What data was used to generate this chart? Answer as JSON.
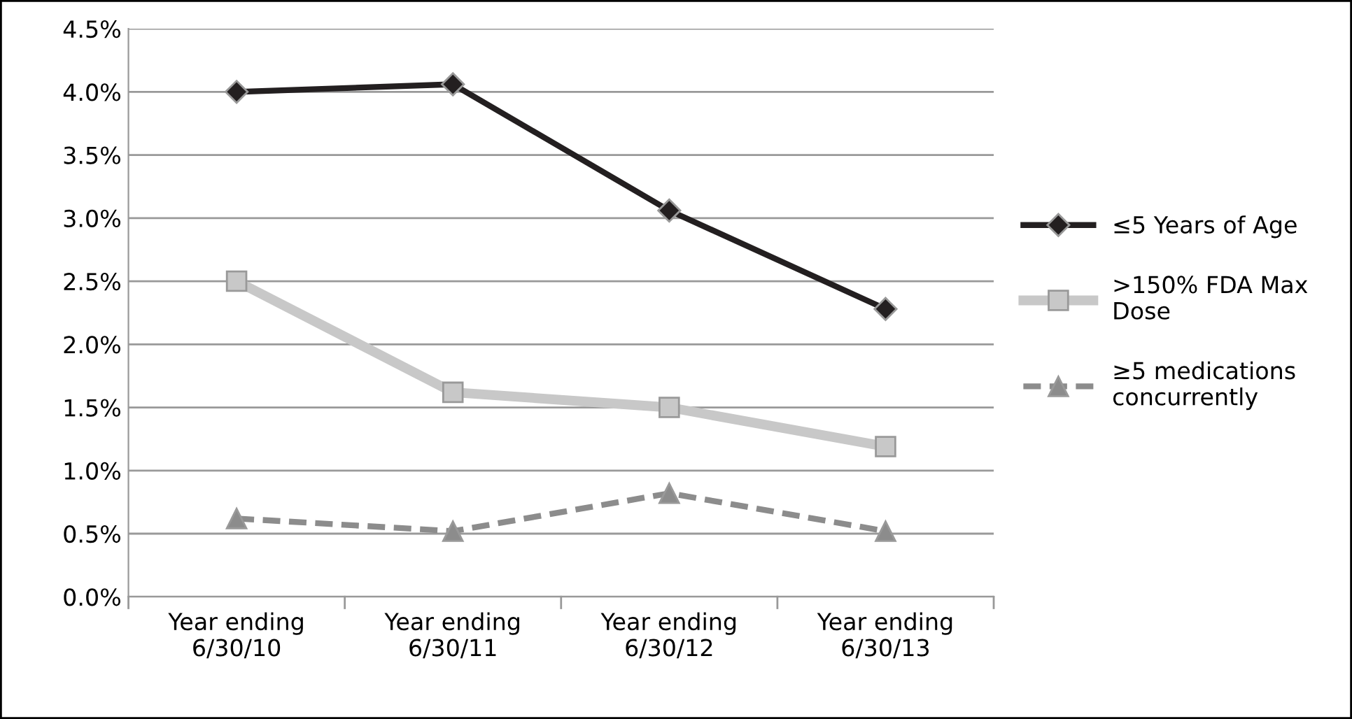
{
  "chart_data": {
    "type": "line",
    "categories": [
      "Year ending\n6/30/10",
      "Year ending\n6/30/11",
      "Year ending\n6/30/12",
      "Year ending\n6/30/13"
    ],
    "series": [
      {
        "name": "≤5 Years of Age",
        "color": "#231f20",
        "values": [
          4.0,
          4.06,
          3.06,
          2.28
        ],
        "marker": "diamond",
        "line_style": "solid"
      },
      {
        "name": ">150% FDA Max Dose",
        "color": "#c8c8c8",
        "values": [
          2.5,
          1.62,
          1.5,
          1.19
        ],
        "marker": "square",
        "line_style": "solid"
      },
      {
        "name": "≥5 medications concurrently",
        "color": "#8c8c8c",
        "values": [
          0.62,
          0.52,
          0.82,
          0.52
        ],
        "marker": "triangle",
        "line_style": "dashed"
      }
    ],
    "ylim": [
      0,
      4.5
    ],
    "yticks": [
      {
        "value": 0,
        "label": "0.0%"
      },
      {
        "value": 0.5,
        "label": "0.5%"
      },
      {
        "value": 1.0,
        "label": "1.0%"
      },
      {
        "value": 1.5,
        "label": "1.5%"
      },
      {
        "value": 2.0,
        "label": "2.0%"
      },
      {
        "value": 2.5,
        "label": "2.5%"
      },
      {
        "value": 3.0,
        "label": "3.0%"
      },
      {
        "value": 3.5,
        "label": "3.5%"
      },
      {
        "value": 4.0,
        "label": "4.0%"
      },
      {
        "value": 4.5,
        "label": "4.5%"
      }
    ],
    "grid": "y",
    "legend": "right"
  }
}
